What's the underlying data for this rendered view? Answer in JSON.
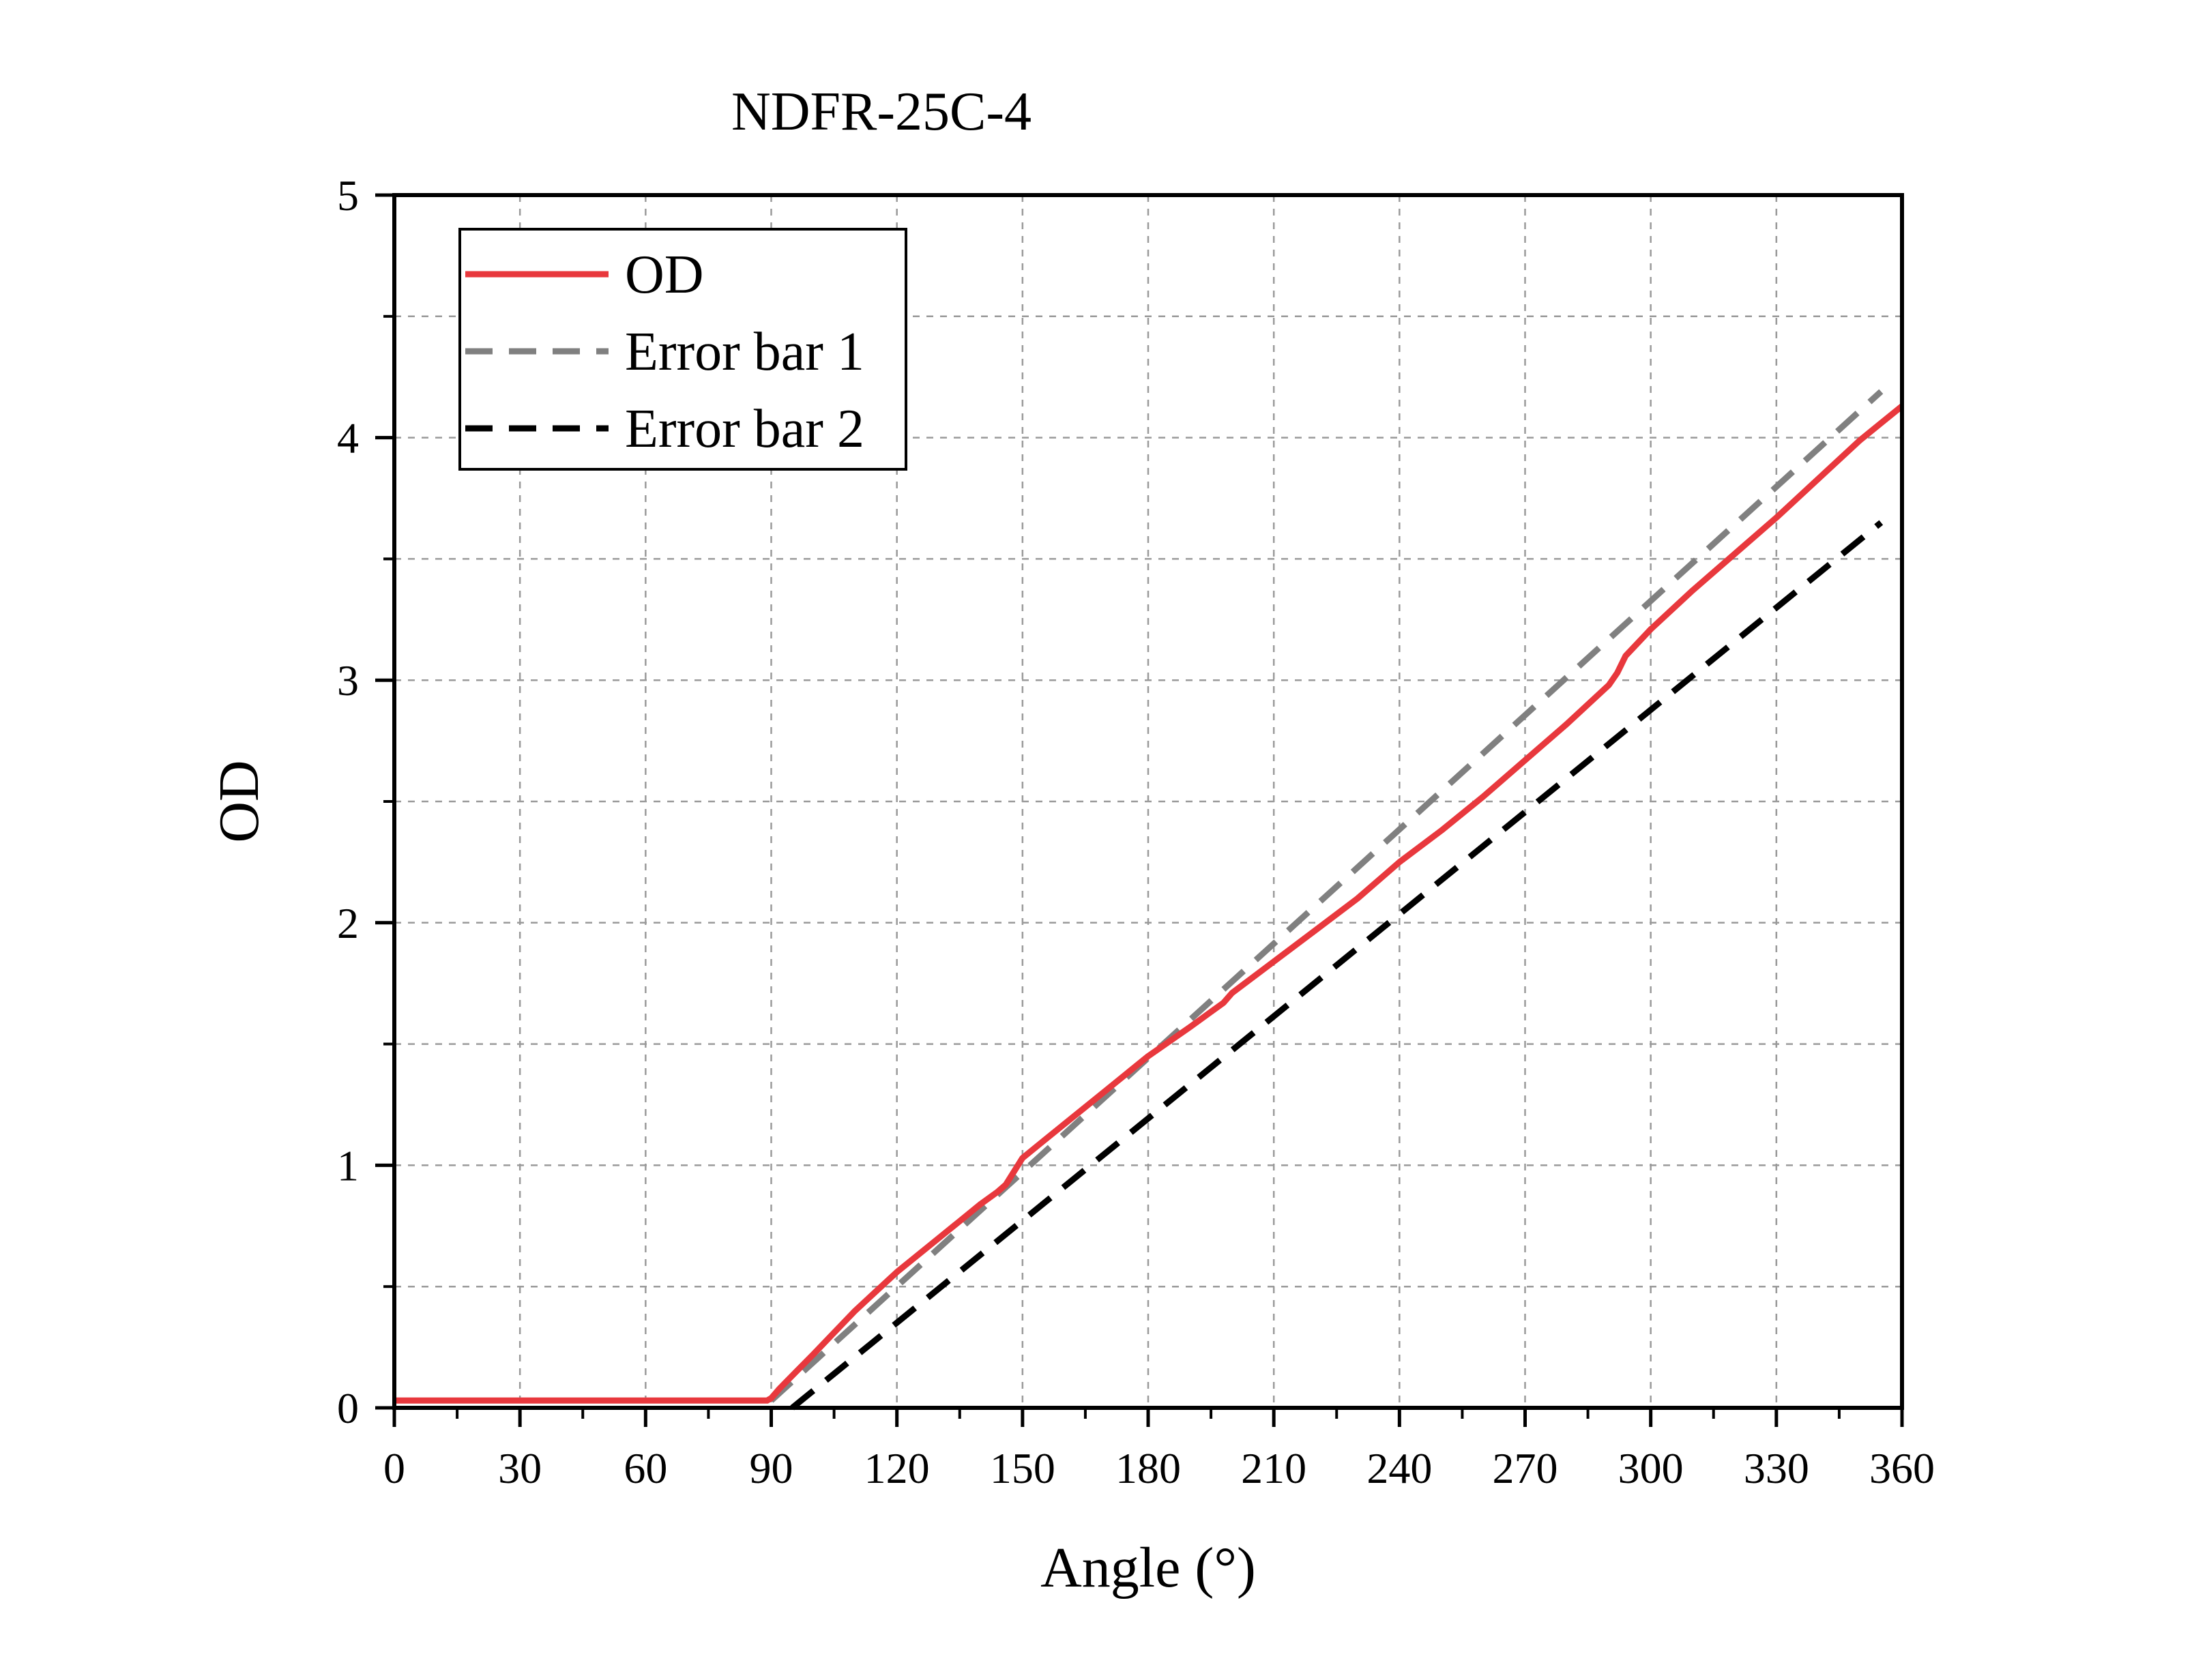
{
  "chart_data": {
    "type": "line",
    "title": "NDFR-25C-4",
    "xlabel": "Angle (°)",
    "ylabel": "OD",
    "xlim": [
      0,
      360
    ],
    "ylim": [
      0,
      5
    ],
    "x_ticks": [
      0,
      30,
      60,
      90,
      120,
      150,
      180,
      210,
      240,
      270,
      300,
      330,
      360
    ],
    "y_ticks": [
      0,
      1,
      2,
      3,
      4,
      5
    ],
    "grid": true,
    "legend_position": "top-left",
    "series": [
      {
        "name": "OD",
        "color": "#e8383d",
        "style": "solid",
        "x": [
          0,
          30,
          60,
          89,
          90,
          92,
          96,
          100,
          105,
          110,
          115,
          120,
          125,
          130,
          135,
          140,
          144,
          146,
          150,
          155,
          160,
          170,
          180,
          190,
          198,
          200,
          210,
          220,
          230,
          240,
          250,
          260,
          270,
          280,
          290,
          292,
          294,
          300,
          310,
          320,
          330,
          340,
          350,
          355,
          360
        ],
        "y": [
          0.03,
          0.03,
          0.03,
          0.03,
          0.04,
          0.08,
          0.15,
          0.22,
          0.31,
          0.4,
          0.48,
          0.56,
          0.63,
          0.7,
          0.77,
          0.84,
          0.89,
          0.92,
          1.03,
          1.1,
          1.17,
          1.31,
          1.45,
          1.57,
          1.67,
          1.71,
          1.84,
          1.97,
          2.1,
          2.25,
          2.38,
          2.52,
          2.67,
          2.82,
          2.98,
          3.03,
          3.1,
          3.21,
          3.37,
          3.52,
          3.67,
          3.83,
          3.99,
          4.06,
          4.13
        ]
      },
      {
        "name": "Error bar 1",
        "color": "#808080",
        "style": "dashed",
        "x": [
          90,
          355
        ],
        "y": [
          0.03,
          4.19
        ]
      },
      {
        "name": "Error bar 2",
        "color": "#000000",
        "style": "dashed",
        "x": [
          95,
          355
        ],
        "y": [
          0.0,
          3.65
        ]
      }
    ]
  }
}
